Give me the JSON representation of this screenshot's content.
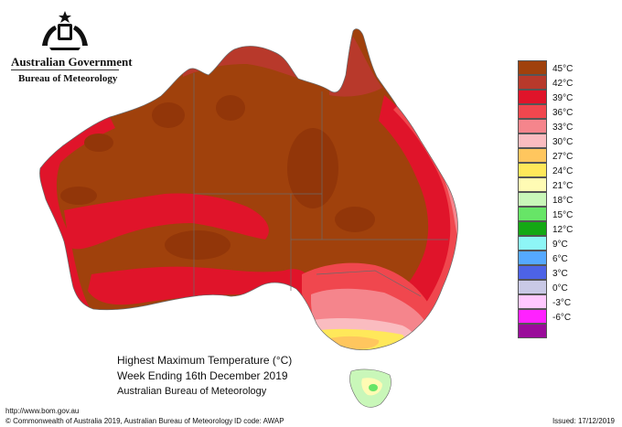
{
  "header": {
    "government": "Australian Government",
    "bureau": "Bureau of Meteorology"
  },
  "map": {
    "title": "Highest Maximum Temperature (°C)",
    "period": "Week Ending 16th December 2019",
    "source": "Australian Bureau of Meteorology"
  },
  "legend": {
    "items": [
      {
        "label": "45°C",
        "color": "#a0410c"
      },
      {
        "label": "42°C",
        "color": "#b8392b"
      },
      {
        "label": "39°C",
        "color": "#e0142a"
      },
      {
        "label": "36°C",
        "color": "#f0474e"
      },
      {
        "label": "33°C",
        "color": "#f5858c"
      },
      {
        "label": "30°C",
        "color": "#fabcc0"
      },
      {
        "label": "27°C",
        "color": "#ffc65e"
      },
      {
        "label": "24°C",
        "color": "#ffe85a"
      },
      {
        "label": "21°C",
        "color": "#fffbb4"
      },
      {
        "label": "18°C",
        "color": "#c9f7b9"
      },
      {
        "label": "15°C",
        "color": "#67e567"
      },
      {
        "label": "12°C",
        "color": "#14a814"
      },
      {
        "label": "9°C",
        "color": "#8ef6f6"
      },
      {
        "label": "6°C",
        "color": "#55a9ff"
      },
      {
        "label": "3°C",
        "color": "#4d63e6"
      },
      {
        "label": "0°C",
        "color": "#c9c9e6"
      },
      {
        "label": "-3°C",
        "color": "#ffc8ff"
      },
      {
        "label": "-6°C",
        "color": "#ff22ff"
      },
      {
        "label": "",
        "color": "#9a0c9a"
      }
    ]
  },
  "footer": {
    "url": "http://www.bom.gov.au",
    "copyright": "© Commonwealth of Australia 2019, Australian Bureau of Meteorology",
    "id_code": "ID code: AWAP",
    "issued": "Issued: 17/12/2019"
  }
}
